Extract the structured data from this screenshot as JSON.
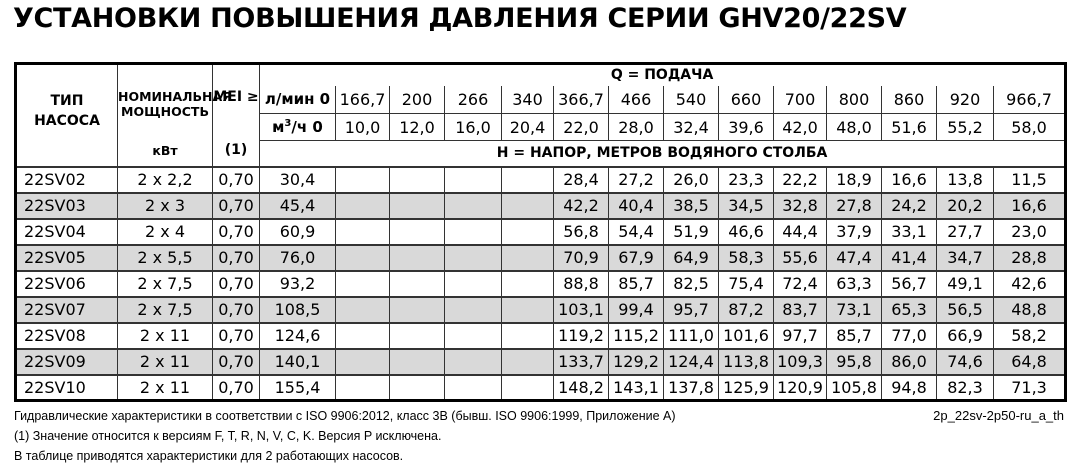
{
  "title": "УСТАНОВКИ ПОВЫШЕНИЯ ДАВЛЕНИЯ СЕРИИ GHV20/22SV",
  "colors": {
    "row_shade": "#d9d9d9",
    "grid_line": "#333333",
    "outer_border": "#000000"
  },
  "table": {
    "headers": {
      "pump_type_line1": "ТИП",
      "pump_type_line2": "НАСОСА",
      "power_line1": "НОМИНАЛЬНАЯ",
      "power_line2": "МОЩНОСТЬ",
      "power_unit": "кВт",
      "mei": "MEI ≥",
      "mei_ref": "(1)",
      "q_title": "Q = ПОДАЧА",
      "h_title": "Н = НАПОР, МЕТРОВ ВОДЯНОГО СТОЛБА",
      "lmin_label": "л/мин 0",
      "m3h_base": "м",
      "m3h_sup": "3",
      "m3h_rest": "/ч 0"
    },
    "flow_lmin": [
      "166,7",
      "200",
      "266",
      "340",
      "366,7",
      "466",
      "540",
      "660",
      "700",
      "800",
      "860",
      "920",
      "966,7"
    ],
    "flow_m3h": [
      "10,0",
      "12,0",
      "16,0",
      "20,4",
      "22,0",
      "28,0",
      "32,4",
      "39,6",
      "42,0",
      "48,0",
      "51,6",
      "55,2",
      "58,0"
    ],
    "rows": [
      {
        "type": "22SV02",
        "power": "2 x 2,2",
        "mei": "0,70",
        "values": [
          "30,4",
          "",
          "",
          "",
          "",
          "28,4",
          "27,2",
          "26,0",
          "23,3",
          "22,2",
          "18,9",
          "16,6",
          "13,8",
          "11,5"
        ]
      },
      {
        "type": "22SV03",
        "power": "2 x 3",
        "mei": "0,70",
        "values": [
          "45,4",
          "",
          "",
          "",
          "",
          "42,2",
          "40,4",
          "38,5",
          "34,5",
          "32,8",
          "27,8",
          "24,2",
          "20,2",
          "16,6"
        ]
      },
      {
        "type": "22SV04",
        "power": "2 x 4",
        "mei": "0,70",
        "values": [
          "60,9",
          "",
          "",
          "",
          "",
          "56,8",
          "54,4",
          "51,9",
          "46,6",
          "44,4",
          "37,9",
          "33,1",
          "27,7",
          "23,0"
        ]
      },
      {
        "type": "22SV05",
        "power": "2 x 5,5",
        "mei": "0,70",
        "values": [
          "76,0",
          "",
          "",
          "",
          "",
          "70,9",
          "67,9",
          "64,9",
          "58,3",
          "55,6",
          "47,4",
          "41,4",
          "34,7",
          "28,8"
        ]
      },
      {
        "type": "22SV06",
        "power": "2 x 7,5",
        "mei": "0,70",
        "values": [
          "93,2",
          "",
          "",
          "",
          "",
          "88,8",
          "85,7",
          "82,5",
          "75,4",
          "72,4",
          "63,3",
          "56,7",
          "49,1",
          "42,6"
        ]
      },
      {
        "type": "22SV07",
        "power": "2 x 7,5",
        "mei": "0,70",
        "values": [
          "108,5",
          "",
          "",
          "",
          "",
          "103,1",
          "99,4",
          "95,7",
          "87,2",
          "83,7",
          "73,1",
          "65,3",
          "56,5",
          "48,8"
        ]
      },
      {
        "type": "22SV08",
        "power": "2 x 11",
        "mei": "0,70",
        "values": [
          "124,6",
          "",
          "",
          "",
          "",
          "119,2",
          "115,2",
          "111,0",
          "101,6",
          "97,7",
          "85,7",
          "77,0",
          "66,9",
          "58,2"
        ]
      },
      {
        "type": "22SV09",
        "power": "2 x 11",
        "mei": "0,70",
        "values": [
          "140,1",
          "",
          "",
          "",
          "",
          "133,7",
          "129,2",
          "124,4",
          "113,8",
          "109,3",
          "95,8",
          "86,0",
          "74,6",
          "64,8"
        ]
      },
      {
        "type": "22SV10",
        "power": "2 x 11",
        "mei": "0,70",
        "values": [
          "155,4",
          "",
          "",
          "",
          "",
          "148,2",
          "143,1",
          "137,8",
          "125,9",
          "120,9",
          "105,8",
          "94,8",
          "82,3",
          "71,3"
        ]
      }
    ]
  },
  "footer": {
    "line1": "Гидравлические характеристики в соответствии с ISO 9906:2012, класс 3В (бывш. ISO 9906:1999, Приложение А)",
    "line2": "(1) Значение относится к версиям F, T, R, N, V, C, K. Версия P исключена.",
    "line3": "В таблице приводятся характеристики для 2 работающих насосов.",
    "doc_code": "2p_22sv-2p50-ru_a_th"
  }
}
